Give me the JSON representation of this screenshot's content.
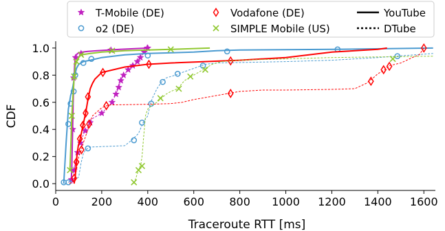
{
  "chart_data": {
    "type": "line",
    "xlabel": "Traceroute RTT [ms]",
    "ylabel": "CDF",
    "xlim": [
      0,
      1650
    ],
    "ylim": [
      -0.05,
      1.05
    ],
    "xticks": [
      0,
      200,
      400,
      600,
      800,
      1000,
      1200,
      1400,
      1600
    ],
    "yticks": [
      0.0,
      0.2,
      0.4,
      0.6,
      0.8,
      1.0
    ],
    "ytick_labels": [
      "0.0",
      "0.2",
      "0.4",
      "0.6",
      "0.8",
      "1.0"
    ],
    "grid": false,
    "legend": {
      "placement": "top",
      "entries": [
        {
          "label": "T-Mobile (DE)",
          "color": "#c020c0",
          "marker": "star"
        },
        {
          "label": "o2 (DE)",
          "color": "#4a9ad0",
          "marker": "circle"
        },
        {
          "label": "Vodafone (DE)",
          "color": "#ff0000",
          "marker": "diamond"
        },
        {
          "label": "SIMPLE Mobile (US)",
          "color": "#90c830",
          "marker": "x"
        },
        {
          "label": "YouTube",
          "color": "#000000",
          "marker": "solid-line"
        },
        {
          "label": "DTube",
          "color": "#000000",
          "marker": "dotted-line"
        }
      ]
    },
    "series": [
      {
        "name": "T-Mobile (DE)",
        "platform": "YouTube",
        "color": "#c020c0",
        "marker": "star",
        "points": [
          [
            68,
            0.03
          ],
          [
            70,
            0.12
          ],
          [
            72,
            0.28
          ],
          [
            74,
            0.45
          ],
          [
            76,
            0.6
          ],
          [
            78,
            0.72
          ],
          [
            80,
            0.8
          ],
          [
            82,
            0.87
          ],
          [
            84,
            0.91
          ],
          [
            87,
            0.94
          ],
          [
            92,
            0.955
          ],
          [
            100,
            0.965
          ],
          [
            115,
            0.97
          ],
          [
            140,
            0.975
          ],
          [
            180,
            0.98
          ],
          [
            280,
            0.99
          ],
          [
            400,
            1.0
          ]
        ],
        "marks": [
          [
            68,
            0.03
          ],
          [
            74,
            0.4
          ],
          [
            78,
            0.78
          ],
          [
            86,
            0.93
          ],
          [
            110,
            0.96
          ],
          [
            240,
            0.985
          ],
          [
            400,
            1.0
          ]
        ]
      },
      {
        "name": "T-Mobile (DE)",
        "platform": "DTube",
        "color": "#c020c0",
        "marker": "star",
        "points": [
          [
            70,
            0.0
          ],
          [
            80,
            0.1
          ],
          [
            90,
            0.2
          ],
          [
            100,
            0.28
          ],
          [
            110,
            0.32
          ],
          [
            125,
            0.38
          ],
          [
            140,
            0.42
          ],
          [
            160,
            0.48
          ],
          [
            200,
            0.52
          ],
          [
            230,
            0.57
          ],
          [
            250,
            0.62
          ],
          [
            265,
            0.67
          ],
          [
            275,
            0.72
          ],
          [
            285,
            0.77
          ],
          [
            300,
            0.81
          ],
          [
            320,
            0.85
          ],
          [
            340,
            0.88
          ],
          [
            355,
            0.9
          ],
          [
            370,
            0.94
          ],
          [
            390,
            0.98
          ],
          [
            400,
            1.0
          ]
        ],
        "marks": [
          [
            80,
            0.1
          ],
          [
            95,
            0.23
          ],
          [
            108,
            0.3
          ],
          [
            128,
            0.39
          ],
          [
            150,
            0.45
          ],
          [
            200,
            0.52
          ],
          [
            245,
            0.6
          ],
          [
            262,
            0.66
          ],
          [
            274,
            0.71
          ],
          [
            283,
            0.76
          ],
          [
            295,
            0.8
          ],
          [
            315,
            0.84
          ],
          [
            335,
            0.87
          ],
          [
            355,
            0.9
          ],
          [
            368,
            0.93
          ],
          [
            385,
            0.97
          ],
          [
            398,
            1.0
          ]
        ]
      },
      {
        "name": "o2 (DE)",
        "platform": "YouTube",
        "color": "#4a9ad0",
        "marker": "circle",
        "points": [
          [
            35,
            0.0
          ],
          [
            40,
            0.15
          ],
          [
            45,
            0.3
          ],
          [
            50,
            0.42
          ],
          [
            55,
            0.55
          ],
          [
            60,
            0.6
          ],
          [
            65,
            0.65
          ],
          [
            70,
            0.68
          ],
          [
            75,
            0.72
          ],
          [
            80,
            0.77
          ],
          [
            85,
            0.81
          ],
          [
            90,
            0.85
          ],
          [
            100,
            0.88
          ],
          [
            120,
            0.9
          ],
          [
            150,
            0.91
          ],
          [
            200,
            0.93
          ],
          [
            300,
            0.95
          ],
          [
            400,
            0.96
          ],
          [
            600,
            0.97
          ],
          [
            700,
            0.98
          ],
          [
            800,
            0.985
          ],
          [
            1200,
            0.99
          ],
          [
            1640,
            1.0
          ]
        ],
        "marks": [
          [
            35,
            0.01
          ],
          [
            55,
            0.44
          ],
          [
            65,
            0.59
          ],
          [
            78,
            0.68
          ],
          [
            85,
            0.8
          ],
          [
            120,
            0.89
          ],
          [
            155,
            0.92
          ],
          [
            400,
            0.945
          ],
          [
            745,
            0.975
          ],
          [
            1225,
            0.99
          ]
        ]
      },
      {
        "name": "o2 (DE)",
        "platform": "DTube",
        "color": "#4a9ad0",
        "marker": "circle",
        "points": [
          [
            40,
            0.0
          ],
          [
            50,
            0.01
          ],
          [
            80,
            0.02
          ],
          [
            100,
            0.05
          ],
          [
            110,
            0.15
          ],
          [
            120,
            0.22
          ],
          [
            130,
            0.25
          ],
          [
            150,
            0.27
          ],
          [
            300,
            0.28
          ],
          [
            330,
            0.32
          ],
          [
            360,
            0.37
          ],
          [
            380,
            0.45
          ],
          [
            400,
            0.5
          ],
          [
            410,
            0.58
          ],
          [
            420,
            0.63
          ],
          [
            440,
            0.7
          ],
          [
            460,
            0.75
          ],
          [
            480,
            0.78
          ],
          [
            520,
            0.8
          ],
          [
            550,
            0.82
          ],
          [
            600,
            0.85
          ],
          [
            650,
            0.88
          ],
          [
            700,
            0.89
          ],
          [
            1000,
            0.9
          ],
          [
            1200,
            0.91
          ],
          [
            1400,
            0.93
          ],
          [
            1480,
            0.94
          ],
          [
            1640,
            0.96
          ]
        ],
        "marks": [
          [
            55,
            0.01
          ],
          [
            140,
            0.26
          ],
          [
            340,
            0.32
          ],
          [
            375,
            0.45
          ],
          [
            415,
            0.59
          ],
          [
            465,
            0.75
          ],
          [
            530,
            0.81
          ],
          [
            640,
            0.87
          ],
          [
            1485,
            0.94
          ]
        ]
      },
      {
        "name": "Vodafone (DE)",
        "platform": "YouTube",
        "color": "#ff0000",
        "marker": "diamond",
        "points": [
          [
            80,
            0.0
          ],
          [
            85,
            0.05
          ],
          [
            88,
            0.12
          ],
          [
            92,
            0.2
          ],
          [
            98,
            0.28
          ],
          [
            105,
            0.32
          ],
          [
            110,
            0.36
          ],
          [
            115,
            0.4
          ],
          [
            120,
            0.44
          ],
          [
            125,
            0.48
          ],
          [
            130,
            0.52
          ],
          [
            135,
            0.57
          ],
          [
            140,
            0.62
          ],
          [
            145,
            0.66
          ],
          [
            150,
            0.7
          ],
          [
            160,
            0.74
          ],
          [
            170,
            0.77
          ],
          [
            200,
            0.82
          ],
          [
            300,
            0.86
          ],
          [
            400,
            0.88
          ],
          [
            500,
            0.89
          ],
          [
            800,
            0.91
          ],
          [
            1000,
            0.93
          ],
          [
            1100,
            0.95
          ],
          [
            1200,
            0.97
          ],
          [
            1400,
            0.99
          ],
          [
            1440,
            1.0
          ]
        ],
        "marks": [
          [
            90,
            0.16
          ],
          [
            105,
            0.33
          ],
          [
            118,
            0.43
          ],
          [
            130,
            0.52
          ],
          [
            140,
            0.64
          ],
          [
            205,
            0.82
          ],
          [
            405,
            0.88
          ],
          [
            760,
            0.905
          ]
        ]
      },
      {
        "name": "Vodafone (DE)",
        "platform": "DTube",
        "color": "#ff0000",
        "marker": "diamond",
        "points": [
          [
            60,
            0.0
          ],
          [
            75,
            0.02
          ],
          [
            85,
            0.05
          ],
          [
            90,
            0.1
          ],
          [
            95,
            0.15
          ],
          [
            100,
            0.2
          ],
          [
            110,
            0.24
          ],
          [
            120,
            0.3
          ],
          [
            130,
            0.35
          ],
          [
            140,
            0.4
          ],
          [
            150,
            0.46
          ],
          [
            160,
            0.5
          ],
          [
            180,
            0.53
          ],
          [
            200,
            0.56
          ],
          [
            230,
            0.58
          ],
          [
            400,
            0.585
          ],
          [
            500,
            0.59
          ],
          [
            550,
            0.6
          ],
          [
            600,
            0.62
          ],
          [
            700,
            0.65
          ],
          [
            800,
            0.68
          ],
          [
            900,
            0.69
          ],
          [
            1000,
            0.69
          ],
          [
            1200,
            0.695
          ],
          [
            1300,
            0.7
          ],
          [
            1350,
            0.74
          ],
          [
            1380,
            0.78
          ],
          [
            1400,
            0.81
          ],
          [
            1430,
            0.84
          ],
          [
            1450,
            0.87
          ],
          [
            1500,
            0.89
          ],
          [
            1550,
            0.93
          ],
          [
            1580,
            0.95
          ],
          [
            1600,
            1.0
          ]
        ],
        "marks": [
          [
            80,
            0.04
          ],
          [
            112,
            0.25
          ],
          [
            145,
            0.44
          ],
          [
            220,
            0.575
          ],
          [
            760,
            0.665
          ],
          [
            1370,
            0.755
          ],
          [
            1425,
            0.84
          ],
          [
            1450,
            0.865
          ],
          [
            1600,
            1.0
          ]
        ]
      },
      {
        "name": "SIMPLE Mobile (US)",
        "platform": "YouTube",
        "color": "#90c830",
        "marker": "x",
        "points": [
          [
            62,
            0.1
          ],
          [
            66,
            0.3
          ],
          [
            70,
            0.5
          ],
          [
            75,
            0.65
          ],
          [
            80,
            0.78
          ],
          [
            85,
            0.87
          ],
          [
            95,
            0.92
          ],
          [
            110,
            0.95
          ],
          [
            150,
            0.96
          ],
          [
            200,
            0.97
          ],
          [
            300,
            0.98
          ],
          [
            400,
            0.985
          ],
          [
            500,
            0.99
          ],
          [
            670,
            1.0
          ]
        ],
        "marks": [
          [
            62,
            0.1
          ],
          [
            70,
            0.5
          ],
          [
            80,
            0.79
          ],
          [
            90,
            0.9
          ],
          [
            110,
            0.95
          ],
          [
            245,
            0.98
          ],
          [
            500,
            0.99
          ]
        ]
      },
      {
        "name": "SIMPLE Mobile (US)",
        "platform": "DTube",
        "color": "#90c830",
        "marker": "x",
        "points": [
          [
            340,
            0.0
          ],
          [
            350,
            0.05
          ],
          [
            360,
            0.1
          ],
          [
            370,
            0.14
          ],
          [
            375,
            0.2
          ],
          [
            380,
            0.3
          ],
          [
            385,
            0.4
          ],
          [
            390,
            0.5
          ],
          [
            400,
            0.55
          ],
          [
            420,
            0.58
          ],
          [
            440,
            0.6
          ],
          [
            460,
            0.63
          ],
          [
            480,
            0.66
          ],
          [
            500,
            0.68
          ],
          [
            530,
            0.7
          ],
          [
            560,
            0.76
          ],
          [
            600,
            0.8
          ],
          [
            640,
            0.84
          ],
          [
            680,
            0.88
          ],
          [
            720,
            0.9
          ],
          [
            800,
            0.91
          ],
          [
            1000,
            0.92
          ],
          [
            1200,
            0.93
          ],
          [
            1640,
            0.94
          ]
        ],
        "marks": [
          [
            340,
            0.01
          ],
          [
            360,
            0.1
          ],
          [
            375,
            0.13
          ],
          [
            455,
            0.63
          ],
          [
            535,
            0.7
          ],
          [
            585,
            0.79
          ],
          [
            650,
            0.84
          ],
          [
            1465,
            0.92
          ]
        ]
      }
    ]
  }
}
